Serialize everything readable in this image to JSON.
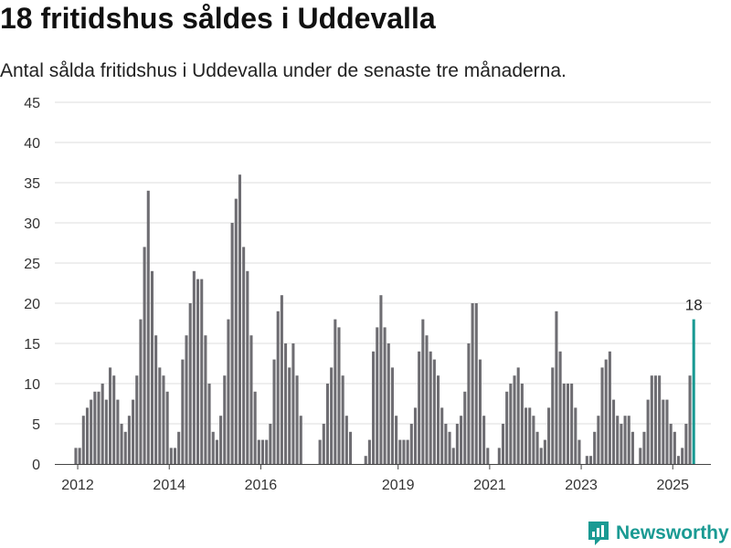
{
  "title": "18 fritidshus såldes i Uddevalla",
  "subtitle": "Antal sålda fritidshus i Uddevalla under de senaste tre månaderna.",
  "brand": {
    "name": "Newsworthy",
    "icon": "newsworthy-logo-icon"
  },
  "colors": {
    "bar": "#6e6d72",
    "highlight": "#1a9a93",
    "grid": "#dddddd",
    "axis": "#444444"
  },
  "chart_data": {
    "type": "bar",
    "title": "",
    "xlabel": "",
    "ylabel": "",
    "ylim": [
      0,
      45
    ],
    "yticks": [
      0,
      5,
      10,
      15,
      20,
      25,
      30,
      35,
      40,
      45
    ],
    "xticks": [
      "2012",
      "2014",
      "2016",
      "2019",
      "2021",
      "2023",
      "2025"
    ],
    "x_range": [
      "2011-07",
      "2025-11"
    ],
    "grid": true,
    "start_month": "2011-10",
    "highlight_annotation": "18",
    "series": [
      {
        "name": "",
        "values": [
          0,
          0,
          2,
          2,
          6,
          7,
          8,
          9,
          9,
          10,
          8,
          12,
          11,
          8,
          5,
          4,
          6,
          8,
          11,
          18,
          27,
          34,
          24,
          16,
          12,
          11,
          9,
          2,
          2,
          4,
          13,
          16,
          20,
          24,
          23,
          23,
          16,
          10,
          4,
          3,
          6,
          11,
          18,
          30,
          33,
          36,
          27,
          24,
          16,
          9,
          3,
          3,
          3,
          5,
          13,
          19,
          21,
          15,
          12,
          15,
          11,
          6,
          0,
          0,
          0,
          0,
          3,
          5,
          10,
          12,
          18,
          17,
          11,
          6,
          4,
          0,
          0,
          0,
          1,
          3,
          14,
          17,
          21,
          17,
          15,
          12,
          6,
          3,
          3,
          3,
          5,
          7,
          14,
          18,
          16,
          14,
          13,
          11,
          7,
          5,
          4,
          2,
          5,
          6,
          9,
          15,
          20,
          20,
          13,
          6,
          2,
          0,
          0,
          2,
          5,
          9,
          10,
          11,
          12,
          10,
          7,
          7,
          6,
          4,
          2,
          3,
          7,
          12,
          19,
          14,
          10,
          10,
          10,
          7,
          3,
          0,
          1,
          1,
          4,
          6,
          12,
          13,
          14,
          8,
          6,
          5,
          6,
          6,
          4,
          0,
          2,
          4,
          8,
          11,
          11,
          11,
          8,
          8,
          5,
          4,
          1,
          2,
          5,
          11,
          18
        ]
      }
    ]
  }
}
